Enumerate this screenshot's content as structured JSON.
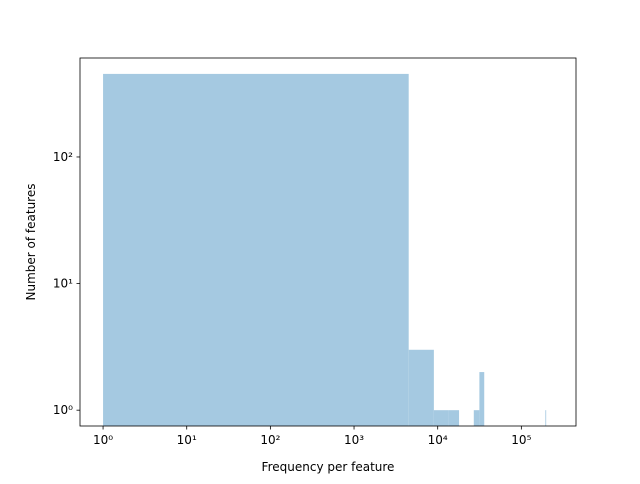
{
  "chart_data": {
    "type": "histogram",
    "xlabel": "Frequency per feature",
    "ylabel": "Number of features",
    "bins": [
      1,
      4501,
      9001,
      13501,
      18001,
      22501,
      27001,
      31501,
      36001,
      40501,
      45001,
      49501,
      54001,
      58501,
      63001,
      67501,
      72001,
      76501,
      81001,
      85501,
      90001,
      94501,
      99001,
      103501,
      108001,
      112501,
      117001,
      121501,
      126001,
      130501,
      135001,
      139501,
      144001,
      148501,
      153001,
      157501,
      162001,
      166501,
      171001,
      175501,
      180001,
      184501,
      189001,
      193501,
      198001,
      202501,
      207001,
      211501,
      216001,
      220501,
      225001
    ],
    "values": [
      453,
      3,
      1,
      1,
      0,
      0,
      1,
      2,
      0,
      0,
      0,
      0,
      0,
      0,
      0,
      0,
      0,
      0,
      0,
      0,
      0,
      0,
      0,
      0,
      0,
      0,
      0,
      0,
      0,
      0,
      0,
      0,
      0,
      0,
      0,
      0,
      0,
      0,
      0,
      0,
      0,
      0,
      0,
      1,
      0,
      0,
      0,
      0,
      0,
      0
    ],
    "color": "#a5c9e1",
    "xscale": "log",
    "yscale": "log",
    "xlim": [
      0.53,
      450000
    ],
    "ylim": [
      0.75,
      605
    ],
    "xticks": [
      {
        "value": 1,
        "label": "10⁰"
      },
      {
        "value": 10,
        "label": "10¹"
      },
      {
        "value": 100,
        "label": "10²"
      },
      {
        "value": 1000,
        "label": "10³"
      },
      {
        "value": 10000,
        "label": "10⁴"
      },
      {
        "value": 100000,
        "label": "10⁵"
      }
    ],
    "yticks": [
      {
        "value": 1,
        "label": "10⁰"
      },
      {
        "value": 10,
        "label": "10¹"
      },
      {
        "value": 100,
        "label": "10²"
      }
    ]
  }
}
